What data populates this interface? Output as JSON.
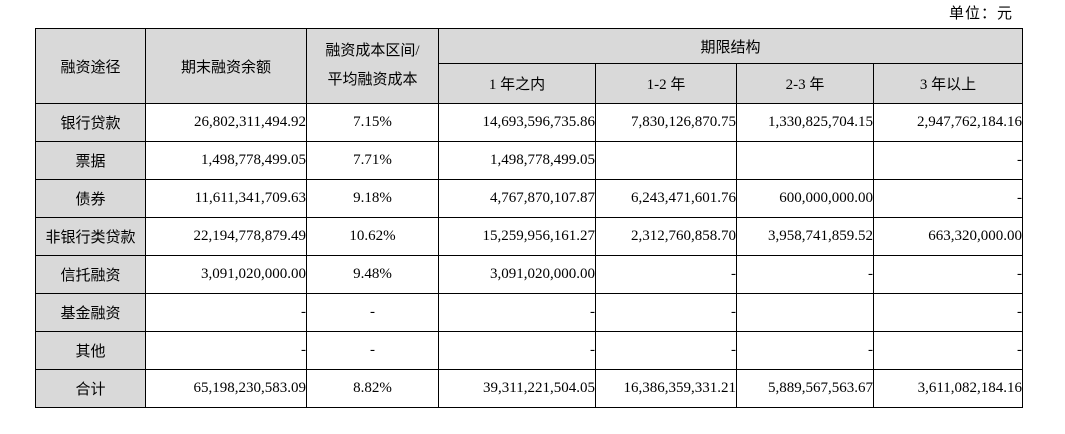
{
  "unit_label": "单位：元",
  "table": {
    "headers": {
      "col_channel": "融资途径",
      "col_balance": "期末融资余额",
      "col_cost_line1": "融资成本区间/",
      "col_cost_line2": "平均融资成本",
      "col_maturity": "期限结构",
      "sub_cols": [
        "1 年之内",
        "1-2 年",
        "2-3 年",
        "3 年以上"
      ]
    },
    "colors": {
      "header_bg": "#d9d9d9",
      "border": "#000000"
    },
    "rows": [
      {
        "label": "银行贷款",
        "balance": "26,802,311,494.92",
        "cost": "7.15%",
        "within_1y": "14,693,596,735.86",
        "y1_2": "7,830,126,870.75",
        "y2_3": "1,330,825,704.15",
        "over_3y": "2,947,762,184.16"
      },
      {
        "label": "票据",
        "balance": "1,498,778,499.05",
        "cost": "7.71%",
        "within_1y": "1,498,778,499.05",
        "y1_2": "",
        "y2_3": "",
        "over_3y": "-"
      },
      {
        "label": "债券",
        "balance": "11,611,341,709.63",
        "cost": "9.18%",
        "within_1y": "4,767,870,107.87",
        "y1_2": "6,243,471,601.76",
        "y2_3": "600,000,000.00",
        "over_3y": "-"
      },
      {
        "label": "非银行类贷款",
        "balance": "22,194,778,879.49",
        "cost": "10.62%",
        "within_1y": "15,259,956,161.27",
        "y1_2": "2,312,760,858.70",
        "y2_3": "3,958,741,859.52",
        "over_3y": "663,320,000.00"
      },
      {
        "label": "信托融资",
        "balance": "3,091,020,000.00",
        "cost": "9.48%",
        "within_1y": "3,091,020,000.00",
        "y1_2": "-",
        "y2_3": "-",
        "over_3y": "-"
      },
      {
        "label": "基金融资",
        "balance": "-",
        "cost": "-",
        "within_1y": "-",
        "y1_2": "-",
        "y2_3": "",
        "over_3y": "-"
      },
      {
        "label": "其他",
        "balance": "-",
        "cost": "-",
        "within_1y": "-",
        "y1_2": "-",
        "y2_3": "-",
        "over_3y": "-"
      },
      {
        "label": "合计",
        "balance": "65,198,230,583.09",
        "cost": "8.82%",
        "within_1y": "39,311,221,504.05",
        "y1_2": "16,386,359,331.21",
        "y2_3": "5,889,567,563.67",
        "over_3y": "3,611,082,184.16"
      }
    ]
  }
}
